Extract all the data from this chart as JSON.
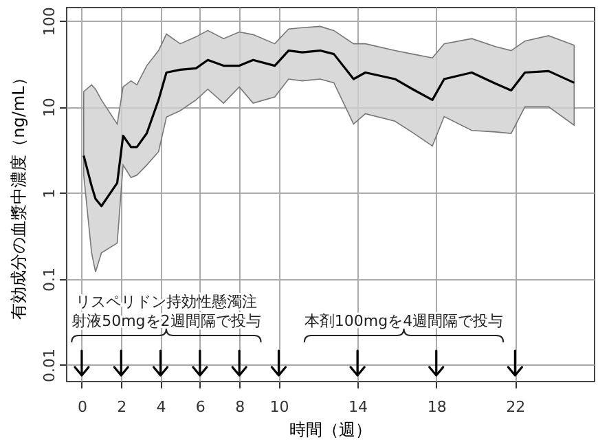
{
  "chart_data": {
    "type": "line",
    "xlabel": "時間（週）",
    "ylabel": "有効成分の血漿中濃度（ng/mL）",
    "x": [
      0.1,
      0.5,
      0.7,
      1,
      1.8,
      2.1,
      2.5,
      2.8,
      3.3,
      3.9,
      4.3,
      5,
      5.8,
      6.4,
      7.2,
      8,
      8.7,
      9.8,
      10.5,
      11.2,
      12.1,
      12.8,
      13.8,
      14.4,
      15.9,
      16.8,
      17.8,
      18.4,
      19.8,
      21,
      21.8,
      22.5,
      23.7,
      25
    ],
    "series": [
      {
        "color": "#000000",
        "values": [
          2.7,
          1.2,
          0.85,
          0.7,
          1.3,
          4.6,
          3.4,
          3.4,
          4.9,
          12,
          25,
          27,
          28,
          35,
          30,
          30,
          35,
          30,
          45,
          43,
          45,
          41,
          21,
          25,
          21,
          16,
          12,
          21,
          25,
          18.6,
          15.5,
          25,
          26,
          19
        ],
        "lower": [
          1.6,
          0.2,
          0.12,
          0.2,
          0.26,
          2.1,
          1.5,
          1.6,
          2.1,
          3,
          7.6,
          9,
          12,
          16,
          11,
          17,
          11,
          13,
          21,
          20,
          21,
          19,
          6.3,
          8.3,
          6.8,
          5,
          3.5,
          7.7,
          5.3,
          5.1,
          4.9,
          10,
          10,
          6.1
        ],
        "upper": [
          15,
          18,
          16,
          12,
          6.3,
          17,
          20,
          18,
          30,
          45,
          70,
          54,
          65,
          77,
          62,
          74,
          69,
          54,
          80,
          83,
          86,
          77,
          54,
          54,
          45,
          41,
          37,
          54,
          62,
          50,
          45,
          58,
          67,
          52
        ]
      }
    ],
    "xlim": [
      -0.8,
      26
    ],
    "xticks": [
      0,
      2,
      4,
      6,
      8,
      10,
      14,
      18,
      22
    ],
    "ylim": [
      0.0065,
      145
    ],
    "yticks": [
      0.01,
      0.1,
      1,
      10,
      100
    ],
    "log": true,
    "grid": true,
    "annotations": [
      "リスペリドン持効性懸濁注射液50mgを2週間隔で投与",
      "本剤100mgを4週間隔で投与"
    ]
  }
}
